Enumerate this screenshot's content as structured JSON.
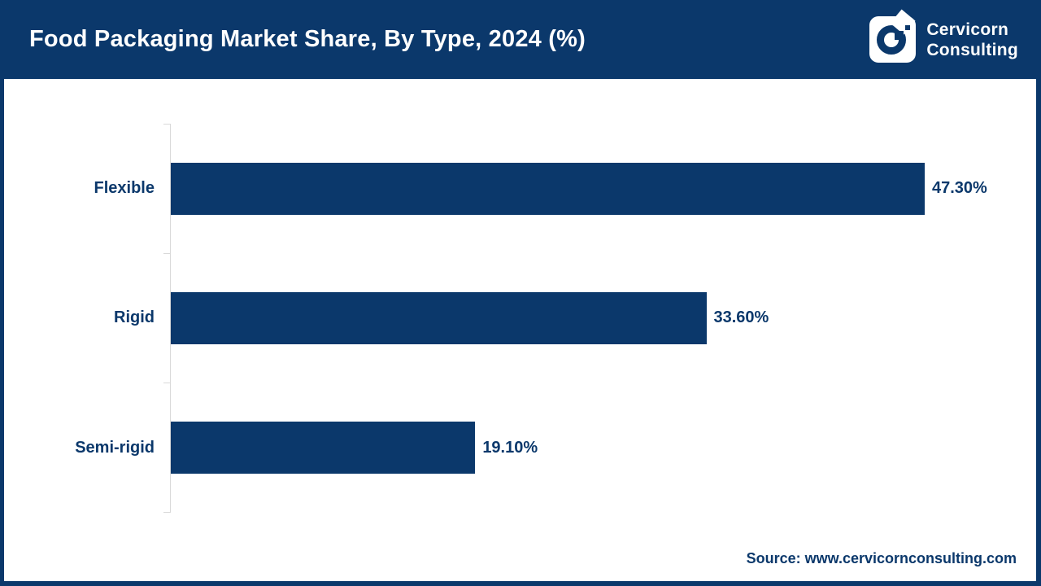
{
  "header": {
    "title": "Food Packaging Market Share, By Type, 2024 (%)",
    "logo": {
      "icon": "cervicorn-c-icon",
      "brand_line1": "Cervicorn",
      "brand_line2": "Consulting"
    }
  },
  "chart_data": {
    "type": "bar",
    "orientation": "horizontal",
    "title": "Food Packaging Market Share, By Type, 2024 (%)",
    "categories": [
      "Flexible",
      "Rigid",
      "Semi-rigid"
    ],
    "values": [
      47.3,
      33.6,
      19.1
    ],
    "value_labels": [
      "47.30%",
      "33.60%",
      "19.10%"
    ],
    "xlim": [
      0,
      47.3
    ],
    "grid": false,
    "legend": "none",
    "bar_color": "#0b386b",
    "axis_line_color": "#d9d9d9"
  },
  "footer": {
    "source": "Source: www.cervicornconsulting.com"
  },
  "colors": {
    "navy": "#0b386b",
    "white": "#ffffff",
    "axis_line": "#d9d9d9"
  }
}
